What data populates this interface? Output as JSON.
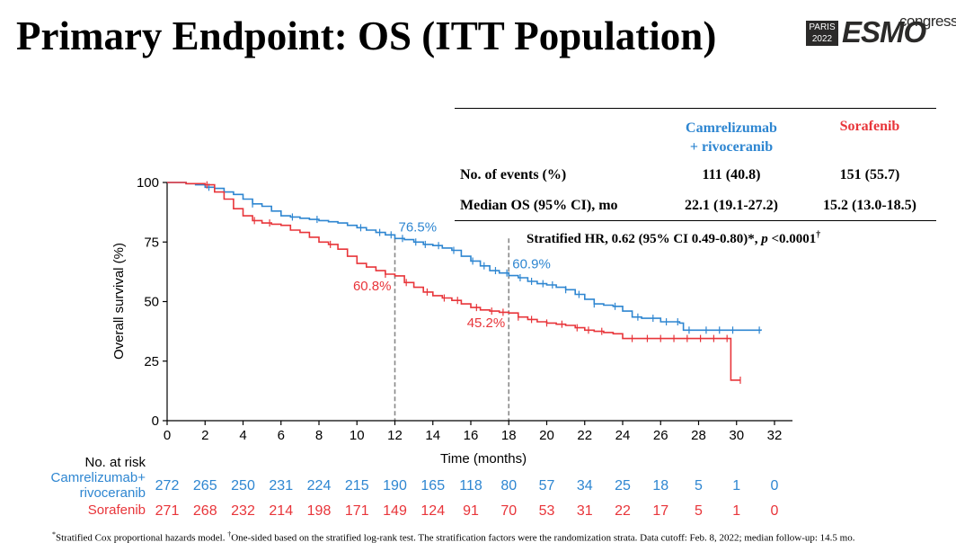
{
  "slide": {
    "title": "Primary Endpoint: OS (ITT Population)",
    "logo": {
      "city": "PARIS",
      "year": "2022",
      "brand": "ESMO",
      "suffix": "congress"
    }
  },
  "table": {
    "col1_header_line1": "Camrelizumab",
    "col1_header_line2": "+ rivoceranib",
    "col2_header": "Sorafenib",
    "rows": [
      {
        "label": "No. of events (%)",
        "v1": "111 (40.8)",
        "v2": "151 (55.7)"
      },
      {
        "label": "Median OS (95% CI), mo",
        "v1": "22.1 (19.1-27.2)",
        "v2": "15.2 (13.0-18.5)"
      }
    ],
    "hr_text": "Stratified HR, 0.62 (95% CI 0.49-0.80)*, ",
    "hr_p_italic": "p",
    "hr_p_value": " <0.0001",
    "hr_dagger": "†"
  },
  "footnote": {
    "star": "*",
    "text1": "Stratified Cox proportional hazards model. ",
    "dagger": "†",
    "text2": "One-sided based on the stratified log-rank test. The stratification factors were the randomization strata. Data cutoff: Feb. 8, 2022; median follow-up: 14.5 mo."
  },
  "colors": {
    "blue": "#2e86d1",
    "red": "#e8353a",
    "ref": "#888888",
    "axis": "#000000"
  },
  "chart_data": {
    "type": "line",
    "title": "",
    "xlabel": "Time (months)",
    "ylabel": "Overall survival (%)",
    "xlim": [
      0,
      32
    ],
    "ylim": [
      0,
      100
    ],
    "x_ticks": [
      0,
      2,
      4,
      6,
      8,
      10,
      12,
      14,
      16,
      18,
      20,
      22,
      24,
      26,
      28,
      30,
      32
    ],
    "y_ticks": [
      0,
      25,
      50,
      75,
      100
    ],
    "reference_lines_x": [
      12,
      18
    ],
    "series": [
      {
        "name": "Camrelizumab + rivoceranib",
        "color": "#2e86d1",
        "points": [
          [
            0,
            100
          ],
          [
            1,
            99.5
          ],
          [
            1.5,
            99
          ],
          [
            2,
            98
          ],
          [
            2.5,
            97.5
          ],
          [
            3,
            96
          ],
          [
            3.5,
            95
          ],
          [
            4,
            93
          ],
          [
            4.5,
            91
          ],
          [
            5,
            90
          ],
          [
            5.5,
            88
          ],
          [
            6,
            86
          ],
          [
            6.5,
            85.5
          ],
          [
            7,
            85
          ],
          [
            7.5,
            84.5
          ],
          [
            8,
            84
          ],
          [
            8.5,
            83.5
          ],
          [
            9,
            83
          ],
          [
            9.5,
            82
          ],
          [
            10,
            81
          ],
          [
            10.5,
            80
          ],
          [
            11,
            79
          ],
          [
            11.5,
            78
          ],
          [
            12,
            76.5
          ],
          [
            12.5,
            76
          ],
          [
            13,
            75
          ],
          [
            13.5,
            74
          ],
          [
            14,
            73.5
          ],
          [
            14.5,
            72.5
          ],
          [
            15,
            71.5
          ],
          [
            15.5,
            69
          ],
          [
            16,
            67
          ],
          [
            16.5,
            65
          ],
          [
            17,
            63
          ],
          [
            17.5,
            62
          ],
          [
            18,
            60.9
          ],
          [
            18.5,
            60
          ],
          [
            19,
            58.5
          ],
          [
            19.5,
            57.5
          ],
          [
            20,
            57
          ],
          [
            20.5,
            56
          ],
          [
            21,
            55
          ],
          [
            21.5,
            53
          ],
          [
            22,
            51
          ],
          [
            22.5,
            49
          ],
          [
            23,
            48.5
          ],
          [
            23.5,
            48
          ],
          [
            24,
            46
          ],
          [
            24.5,
            43.5
          ],
          [
            25,
            43
          ],
          [
            26,
            41.5
          ],
          [
            27,
            41
          ],
          [
            27.2,
            38
          ],
          [
            28,
            38
          ],
          [
            29,
            38
          ],
          [
            30,
            38
          ],
          [
            31,
            38
          ],
          [
            31.3,
            37.8
          ]
        ],
        "censor_x": [
          2.2,
          4.5,
          6.6,
          7.9,
          10.2,
          11.2,
          11.8,
          12.4,
          13.1,
          13.6,
          14.3,
          15.1,
          16.1,
          16.7,
          17.3,
          17.9,
          18.6,
          19.2,
          19.8,
          20.3,
          21.0,
          21.7,
          22.5,
          23.6,
          24.8,
          25.6,
          26.3,
          26.9,
          27.5,
          28.4,
          29.1,
          29.8,
          31.2
        ],
        "annotations": [
          {
            "x": 12,
            "y": 76.5,
            "text": "76.5%",
            "pos": "above-right"
          },
          {
            "x": 18,
            "y": 60.9,
            "text": "60.9%",
            "pos": "above-right"
          }
        ],
        "at_risk_label_line1": "Camrelizumab+",
        "at_risk_label_line2": "rivoceranib",
        "at_risk": [
          272,
          265,
          250,
          231,
          224,
          215,
          190,
          165,
          118,
          80,
          57,
          34,
          25,
          18,
          5,
          1,
          0
        ]
      },
      {
        "name": "Sorafenib",
        "color": "#e8353a",
        "points": [
          [
            0,
            100
          ],
          [
            1,
            99.5
          ],
          [
            2,
            99
          ],
          [
            2.5,
            96
          ],
          [
            3,
            93
          ],
          [
            3.5,
            89
          ],
          [
            4,
            86
          ],
          [
            4.5,
            84
          ],
          [
            5,
            83
          ],
          [
            5.5,
            82.5
          ],
          [
            6,
            82
          ],
          [
            6.5,
            80
          ],
          [
            7,
            79
          ],
          [
            7.5,
            77
          ],
          [
            8,
            75
          ],
          [
            8.5,
            74
          ],
          [
            9,
            72
          ],
          [
            9.5,
            69
          ],
          [
            10,
            66
          ],
          [
            10.5,
            64.5
          ],
          [
            11,
            63
          ],
          [
            11.5,
            61.5
          ],
          [
            12,
            60.8
          ],
          [
            12.5,
            58
          ],
          [
            13,
            56
          ],
          [
            13.5,
            54
          ],
          [
            14,
            52.5
          ],
          [
            14.5,
            51.5
          ],
          [
            15,
            50.5
          ],
          [
            15.5,
            49
          ],
          [
            16,
            47.5
          ],
          [
            16.5,
            46.5
          ],
          [
            17,
            46
          ],
          [
            17.5,
            45.5
          ],
          [
            18,
            45.2
          ],
          [
            18.5,
            43.5
          ],
          [
            19,
            42.5
          ],
          [
            19.5,
            41.5
          ],
          [
            20,
            41
          ],
          [
            20.5,
            40.5
          ],
          [
            21,
            40
          ],
          [
            21.5,
            39
          ],
          [
            22,
            38
          ],
          [
            22.5,
            37.5
          ],
          [
            23,
            37
          ],
          [
            23.5,
            36.5
          ],
          [
            24,
            34.5
          ],
          [
            25,
            34.5
          ],
          [
            26,
            34.5
          ],
          [
            27,
            34.5
          ],
          [
            28,
            34.5
          ],
          [
            29,
            34.5
          ],
          [
            29.7,
            34.5
          ],
          [
            29.7,
            17
          ],
          [
            30.2,
            17
          ]
        ],
        "censor_x": [
          2.1,
          4.6,
          5.4,
          8.6,
          11.5,
          12.6,
          13.7,
          14.6,
          15.3,
          16.3,
          17.1,
          17.7,
          18.5,
          19.2,
          20.0,
          20.8,
          21.6,
          22.2,
          22.9,
          24.5,
          25.3,
          26.0,
          26.7,
          27.4,
          28.1,
          28.8,
          29.5,
          30.2
        ],
        "annotations": [
          {
            "x": 12,
            "y": 60.8,
            "text": "60.8%",
            "pos": "below-left"
          },
          {
            "x": 18,
            "y": 45.2,
            "text": "45.2%",
            "pos": "below-left"
          }
        ],
        "at_risk_label_line1": "Sorafenib",
        "at_risk": [
          271,
          268,
          232,
          214,
          198,
          171,
          149,
          124,
          91,
          70,
          53,
          31,
          22,
          17,
          5,
          1,
          0
        ]
      }
    ],
    "at_risk_title": "No. at risk"
  }
}
